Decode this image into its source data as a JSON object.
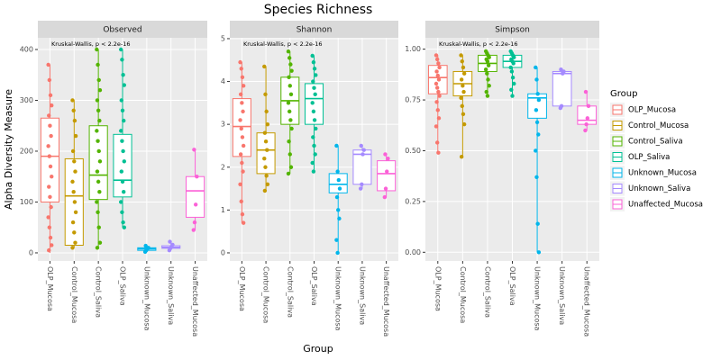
{
  "title": "Species Richness",
  "x_label": "Group",
  "y_label": "Alpha Diversity Measure",
  "legend": {
    "title": "Group",
    "entries": [
      "OLP_Mucosa",
      "Control_Mucosa",
      "Control_Saliva",
      "OLP_Saliva",
      "Unknown_Mucosa",
      "Unknown_Saliva",
      "Unaffected_Mucosa"
    ],
    "colors": [
      "#F8766D",
      "#C49A00",
      "#53B400",
      "#00C094",
      "#00B6EB",
      "#A58AFF",
      "#FB61D7"
    ]
  },
  "chart_data": [
    {
      "type": "box",
      "title": "Observed",
      "annotation": "Kruskal-Wallis, p < 2.2e-16",
      "categories": [
        "OLP_Mucosa",
        "Control_Mucosa",
        "Control_Saliva",
        "OLP_Saliva",
        "Unknown_Mucosa",
        "Unknown_Saliva",
        "Unaffected_Mucosa"
      ],
      "ylim": [
        -16,
        423
      ],
      "yticks": [
        0,
        100,
        200,
        300,
        400
      ],
      "grid": true,
      "boxes": [
        {
          "whisker_low": 0,
          "q1": 100,
          "median": 190,
          "q3": 265,
          "whisker_high": 370,
          "points": [
            370,
            340,
            310,
            290,
            270,
            250,
            230,
            210,
            190,
            170,
            150,
            130,
            110,
            90,
            70,
            50,
            30,
            15,
            5
          ]
        },
        {
          "whisker_low": 10,
          "q1": 15,
          "median": 112,
          "q3": 185,
          "whisker_high": 300,
          "points": [
            300,
            280,
            260,
            230,
            200,
            180,
            160,
            140,
            120,
            100,
            80,
            60,
            40,
            20,
            10
          ]
        },
        {
          "whisker_low": 10,
          "q1": 105,
          "median": 153,
          "q3": 250,
          "whisker_high": 400,
          "points": [
            400,
            370,
            340,
            320,
            300,
            280,
            260,
            240,
            220,
            200,
            180,
            160,
            140,
            120,
            100,
            80,
            50,
            20,
            10
          ]
        },
        {
          "whisker_low": 50,
          "q1": 110,
          "median": 143,
          "q3": 233,
          "whisker_high": 400,
          "points": [
            400,
            380,
            350,
            330,
            300,
            280,
            260,
            240,
            220,
            200,
            180,
            160,
            140,
            120,
            100,
            80,
            60,
            50
          ]
        },
        {
          "whisker_low": 2,
          "q1": 5,
          "median": 8,
          "q3": 10,
          "whisker_high": 14,
          "points": [
            2,
            5,
            8,
            10,
            14
          ]
        },
        {
          "whisker_low": 5,
          "q1": 9,
          "median": 11,
          "q3": 14,
          "whisker_high": 22,
          "points": [
            5,
            9,
            12,
            16,
            22
          ]
        },
        {
          "whisker_low": 45,
          "q1": 70,
          "median": 122,
          "q3": 150,
          "whisker_high": 203,
          "points": [
            45,
            60,
            95,
            150,
            203
          ]
        }
      ]
    },
    {
      "type": "box",
      "title": "Shannon",
      "annotation": "Kruskal-Wallis, p < 2.2e-16",
      "categories": [
        "OLP_Mucosa",
        "Control_Mucosa",
        "Control_Saliva",
        "OLP_Saliva",
        "Unknown_Mucosa",
        "Unknown_Saliva",
        "Unaffected_Mucosa"
      ],
      "ylim": [
        -0.19,
        5.02
      ],
      "yticks": [
        0,
        1,
        2,
        3,
        4,
        5
      ],
      "grid": true,
      "boxes": [
        {
          "whisker_low": 0.7,
          "q1": 2.25,
          "median": 2.95,
          "q3": 3.6,
          "whisker_high": 4.45,
          "points": [
            4.45,
            4.3,
            4.1,
            3.9,
            3.7,
            3.5,
            3.3,
            3.1,
            2.9,
            2.7,
            2.5,
            2.3,
            2.1,
            1.9,
            1.6,
            1.2,
            0.9,
            0.7
          ]
        },
        {
          "whisker_low": 1.45,
          "q1": 1.85,
          "median": 2.4,
          "q3": 2.8,
          "whisker_high": 4.35,
          "points": [
            4.35,
            3.7,
            3.3,
            3.0,
            2.8,
            2.6,
            2.4,
            2.2,
            2.0,
            1.8,
            1.6,
            1.45
          ]
        },
        {
          "whisker_low": 1.85,
          "q1": 3.0,
          "median": 3.55,
          "q3": 4.1,
          "whisker_high": 4.7,
          "points": [
            4.7,
            4.55,
            4.4,
            4.25,
            4.1,
            3.9,
            3.7,
            3.5,
            3.3,
            3.1,
            2.9,
            2.6,
            2.3,
            2.0,
            1.85
          ]
        },
        {
          "whisker_low": 1.9,
          "q1": 3.0,
          "median": 3.6,
          "q3": 3.95,
          "whisker_high": 4.6,
          "points": [
            4.6,
            4.45,
            4.3,
            4.15,
            4.0,
            3.85,
            3.7,
            3.5,
            3.3,
            3.1,
            2.9,
            2.7,
            2.5,
            2.3,
            2.1,
            1.9
          ]
        },
        {
          "whisker_low": 0,
          "q1": 1.4,
          "median": 1.6,
          "q3": 1.85,
          "whisker_high": 2.5,
          "points": [
            2.5,
            1.9,
            1.7,
            1.5,
            1.3,
            1.0,
            0.8,
            0.3,
            0
          ]
        },
        {
          "whisker_low": 1.5,
          "q1": 1.6,
          "median": 2.3,
          "q3": 2.4,
          "whisker_high": 2.5,
          "points": [
            1.5,
            1.6,
            2.3,
            2.4,
            2.5
          ]
        },
        {
          "whisker_low": 1.3,
          "q1": 1.45,
          "median": 1.85,
          "q3": 2.15,
          "whisker_high": 2.3,
          "points": [
            1.3,
            1.5,
            1.9,
            2.2,
            2.3
          ]
        }
      ]
    },
    {
      "type": "box",
      "title": "Simpson",
      "annotation": "Kruskal-Wallis, p < 2.2e-16",
      "categories": [
        "OLP_Mucosa",
        "Control_Mucosa",
        "Control_Saliva",
        "OLP_Saliva",
        "Unknown_Mucosa",
        "Unknown_Saliva",
        "Unaffected_Mucosa"
      ],
      "ylim": [
        -0.043,
        1.056
      ],
      "yticks": [
        {
          "value": 0,
          "label": "0.00"
        },
        {
          "value": 0.25,
          "label": "0.25"
        },
        {
          "value": 0.5,
          "label": "0.50"
        },
        {
          "value": 0.75,
          "label": "0.75"
        },
        {
          "value": 1,
          "label": "1.00"
        }
      ],
      "grid": true,
      "boxes": [
        {
          "whisker_low": 0.49,
          "q1": 0.78,
          "median": 0.86,
          "q3": 0.92,
          "whisker_high": 0.97,
          "points": [
            0.97,
            0.95,
            0.93,
            0.91,
            0.89,
            0.87,
            0.85,
            0.83,
            0.81,
            0.79,
            0.77,
            0.74,
            0.7,
            0.66,
            0.62,
            0.54,
            0.49
          ]
        },
        {
          "whisker_low": 0.47,
          "q1": 0.77,
          "median": 0.83,
          "q3": 0.89,
          "whisker_high": 0.97,
          "points": [
            0.97,
            0.94,
            0.91,
            0.88,
            0.85,
            0.82,
            0.79,
            0.76,
            0.72,
            0.68,
            0.63,
            0.47
          ]
        },
        {
          "whisker_low": 0.77,
          "q1": 0.89,
          "median": 0.93,
          "q3": 0.97,
          "whisker_high": 0.99,
          "points": [
            0.99,
            0.98,
            0.97,
            0.96,
            0.95,
            0.94,
            0.92,
            0.9,
            0.88,
            0.85,
            0.82,
            0.79,
            0.77
          ]
        },
        {
          "whisker_low": 0.77,
          "q1": 0.91,
          "median": 0.94,
          "q3": 0.97,
          "whisker_high": 0.99,
          "points": [
            0.99,
            0.98,
            0.97,
            0.96,
            0.95,
            0.94,
            0.93,
            0.91,
            0.89,
            0.86,
            0.83,
            0.8,
            0.77
          ]
        },
        {
          "whisker_low": 0,
          "q1": 0.66,
          "median": 0.76,
          "q3": 0.78,
          "whisker_high": 0.91,
          "points": [
            0.91,
            0.85,
            0.78,
            0.75,
            0.7,
            0.64,
            0.58,
            0.5,
            0.37,
            0.14,
            0
          ]
        },
        {
          "whisker_low": 0.71,
          "q1": 0.72,
          "median": 0.88,
          "q3": 0.89,
          "whisker_high": 0.9,
          "points": [
            0.71,
            0.72,
            0.88,
            0.89,
            0.9
          ]
        },
        {
          "whisker_low": 0.6,
          "q1": 0.63,
          "median": 0.65,
          "q3": 0.72,
          "whisker_high": 0.79,
          "points": [
            0.6,
            0.63,
            0.66,
            0.72,
            0.79
          ]
        }
      ]
    }
  ]
}
